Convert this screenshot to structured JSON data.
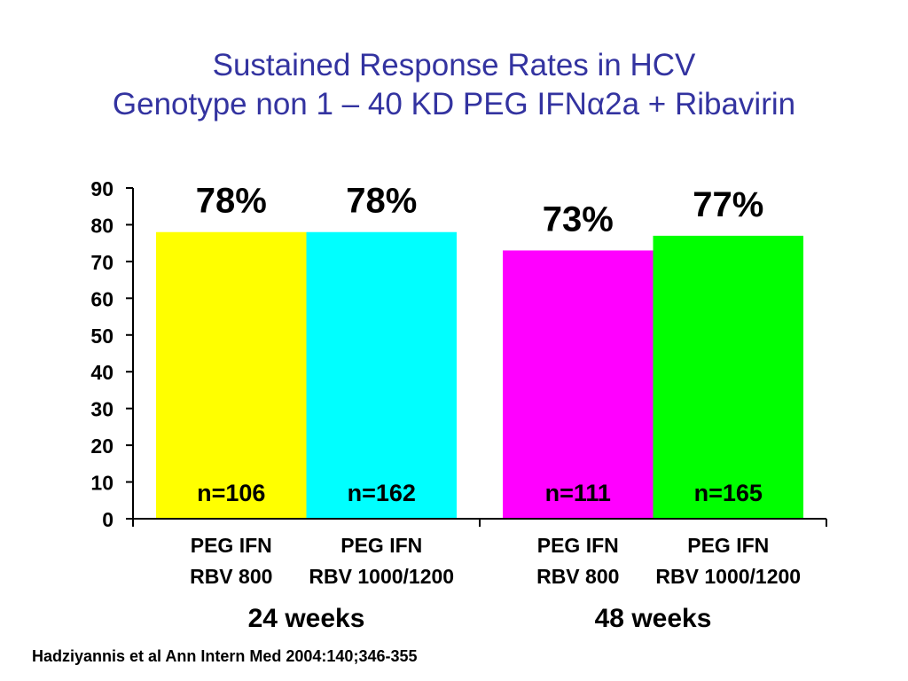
{
  "slide": {
    "title_line1": "Sustained Response Rates in HCV",
    "title_line2": "Genotype non 1 – 40 KD PEG IFNα2a + Ribavirin",
    "citation": "Hadziyannis et al Ann Intern Med 2004:140;346-355"
  },
  "colors": {
    "title": "#3333a0",
    "bars": [
      "#ffff00",
      "#00ffff",
      "#ff00ff",
      "#00ff00"
    ]
  },
  "chart_data": {
    "type": "bar",
    "title": "",
    "xlabel": "",
    "ylabel": "",
    "ylim": [
      0,
      90
    ],
    "yticks": [
      "0",
      "10",
      "20",
      "30",
      "40",
      "50",
      "60",
      "70",
      "80",
      "90"
    ],
    "grid": false,
    "groups": [
      {
        "label": "24 weeks",
        "bars": [
          {
            "label_line1": "PEG IFN",
            "label_line2": "RBV 800",
            "value": 78,
            "value_label": "78%",
            "n_label": "n=106"
          },
          {
            "label_line1": "PEG IFN",
            "label_line2": "RBV 1000/1200",
            "value": 78,
            "value_label": "78%",
            "n_label": "n=162"
          }
        ]
      },
      {
        "label": "48 weeks",
        "bars": [
          {
            "label_line1": "PEG IFN",
            "label_line2": "RBV 800",
            "value": 73,
            "value_label": "73%",
            "n_label": "n=111"
          },
          {
            "label_line1": "PEG IFN",
            "label_line2": "RBV 1000/1200",
            "value": 77,
            "value_label": "77%",
            "n_label": "n=165"
          }
        ]
      }
    ]
  }
}
